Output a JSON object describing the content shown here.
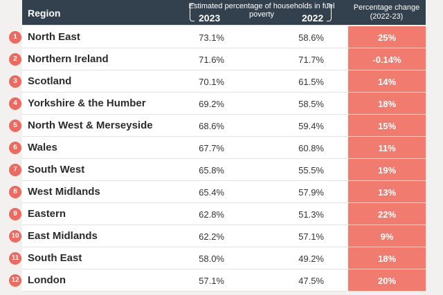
{
  "header": {
    "region": "Region",
    "estimate": "Estimated percentage of households in fuel poverty",
    "year_2023": "2023",
    "year_2022": "2022",
    "change": "Percentage change (2022-23)"
  },
  "colors": {
    "header_bg": "#33404d",
    "accent": "#ec6a5e",
    "change_bg": "#f07b6e",
    "row_bg": "#ffffff"
  },
  "rows": [
    {
      "rank": "1",
      "region": "North East",
      "v2023": "73.1%",
      "v2022": "58.6%",
      "change": "25%"
    },
    {
      "rank": "2",
      "region": "Northern Ireland",
      "v2023": "71.6%",
      "v2022": "71.7%",
      "change": "-0.14%"
    },
    {
      "rank": "3",
      "region": "Scotland",
      "v2023": "70.1%",
      "v2022": "61.5%",
      "change": "14%"
    },
    {
      "rank": "4",
      "region": "Yorkshire & the Humber",
      "v2023": "69.2%",
      "v2022": "58.5%",
      "change": "18%"
    },
    {
      "rank": "5",
      "region": "North West & Merseyside",
      "v2023": "68.6%",
      "v2022": "59.4%",
      "change": "15%"
    },
    {
      "rank": "6",
      "region": "Wales",
      "v2023": "67.7%",
      "v2022": "60.8%",
      "change": "11%"
    },
    {
      "rank": "7",
      "region": "South West",
      "v2023": "65.8%",
      "v2022": "55.5%",
      "change": "19%"
    },
    {
      "rank": "8",
      "region": "West Midlands",
      "v2023": "65.4%",
      "v2022": "57.9%",
      "change": "13%"
    },
    {
      "rank": "9",
      "region": "Eastern",
      "v2023": "62.8%",
      "v2022": "51.3%",
      "change": "22%"
    },
    {
      "rank": "10",
      "region": "East Midlands",
      "v2023": "62.2%",
      "v2022": "57.1%",
      "change": "9%"
    },
    {
      "rank": "11",
      "region": "South East",
      "v2023": "58.0%",
      "v2022": "49.2%",
      "change": "18%"
    },
    {
      "rank": "12",
      "region": "London",
      "v2023": "57.1%",
      "v2022": "47.5%",
      "change": "20%"
    }
  ]
}
